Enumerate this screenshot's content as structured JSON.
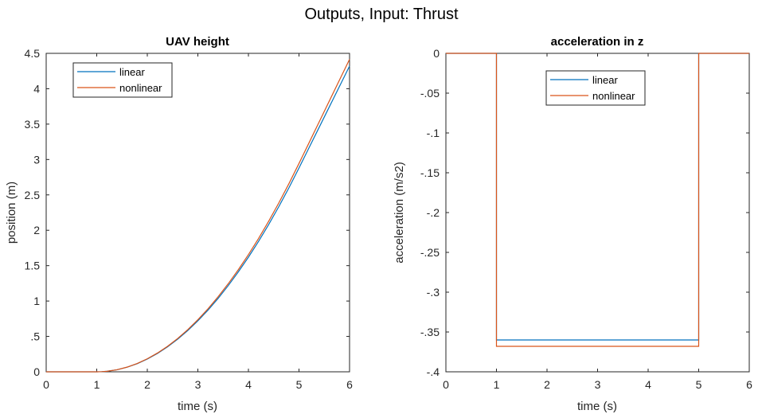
{
  "figure": {
    "suptitle": "Outputs, Input: Thrust",
    "colors": {
      "linear": "#0072BD",
      "nonlinear": "#D95319",
      "axes": "#262626"
    }
  },
  "chart_data": [
    {
      "type": "line",
      "title": "UAV height",
      "xlabel": "time (s)",
      "ylabel": "position (m)",
      "xlim": [
        0,
        6
      ],
      "ylim": [
        0,
        4.5
      ],
      "xticks": [
        0,
        1,
        2,
        3,
        4,
        5,
        6
      ],
      "yticks": [
        0,
        0.5,
        1,
        1.5,
        2,
        2.5,
        3,
        3.5,
        4,
        4.5
      ],
      "grid": false,
      "legend": {
        "placement": "top-left",
        "entries": [
          "linear",
          "nonlinear"
        ]
      },
      "series": [
        {
          "name": "linear",
          "color": "#0072BD",
          "x": [
            0,
            1,
            1.1,
            1.2,
            1.4,
            1.6,
            1.8,
            2.0,
            2.2,
            2.4,
            2.6,
            2.8,
            3.0,
            3.2,
            3.4,
            3.6,
            3.8,
            4.0,
            4.2,
            4.4,
            4.6,
            4.8,
            5.0,
            5.2,
            5.4,
            5.6,
            5.8,
            6.0
          ],
          "y": [
            0,
            0,
            0.002,
            0.007,
            0.029,
            0.065,
            0.115,
            0.18,
            0.259,
            0.353,
            0.461,
            0.583,
            0.72,
            0.871,
            1.037,
            1.217,
            1.412,
            1.62,
            1.843,
            2.081,
            2.333,
            2.599,
            2.88,
            3.168,
            3.456,
            3.744,
            4.032,
            4.32
          ]
        },
        {
          "name": "nonlinear",
          "color": "#D95319",
          "x": [
            0,
            1,
            1.1,
            1.2,
            1.4,
            1.6,
            1.8,
            2.0,
            2.2,
            2.4,
            2.6,
            2.8,
            3.0,
            3.2,
            3.4,
            3.6,
            3.8,
            4.0,
            4.2,
            4.4,
            4.6,
            4.8,
            5.0,
            5.2,
            5.4,
            5.6,
            5.8,
            6.0
          ],
          "y": [
            0,
            0,
            0.002,
            0.007,
            0.029,
            0.066,
            0.118,
            0.184,
            0.265,
            0.36,
            0.47,
            0.596,
            0.736,
            0.89,
            1.06,
            1.244,
            1.443,
            1.656,
            1.884,
            2.127,
            2.385,
            2.657,
            2.944,
            3.238,
            3.533,
            3.827,
            4.122,
            4.416
          ]
        }
      ]
    },
    {
      "type": "line",
      "title": "acceleration in z",
      "xlabel": "time (s)",
      "ylabel": "acceleration (m/s2)",
      "xlim": [
        0,
        6
      ],
      "ylim": [
        -0.4,
        0
      ],
      "xticks": [
        0,
        1,
        2,
        3,
        4,
        5,
        6
      ],
      "yticks": [
        -0.4,
        -0.35,
        -0.3,
        -0.25,
        -0.2,
        -0.15,
        -0.1,
        -0.05,
        0
      ],
      "grid": false,
      "legend": {
        "placement": "top-center",
        "entries": [
          "linear",
          "nonlinear"
        ]
      },
      "series": [
        {
          "name": "linear",
          "color": "#0072BD",
          "x": [
            0,
            1,
            1,
            5,
            5,
            6
          ],
          "y": [
            0,
            0,
            -0.36,
            -0.36,
            0,
            0
          ]
        },
        {
          "name": "nonlinear",
          "color": "#D95319",
          "x": [
            0,
            1,
            1,
            5,
            5,
            6
          ],
          "y": [
            0,
            0,
            -0.368,
            -0.368,
            0,
            0
          ]
        }
      ]
    }
  ]
}
